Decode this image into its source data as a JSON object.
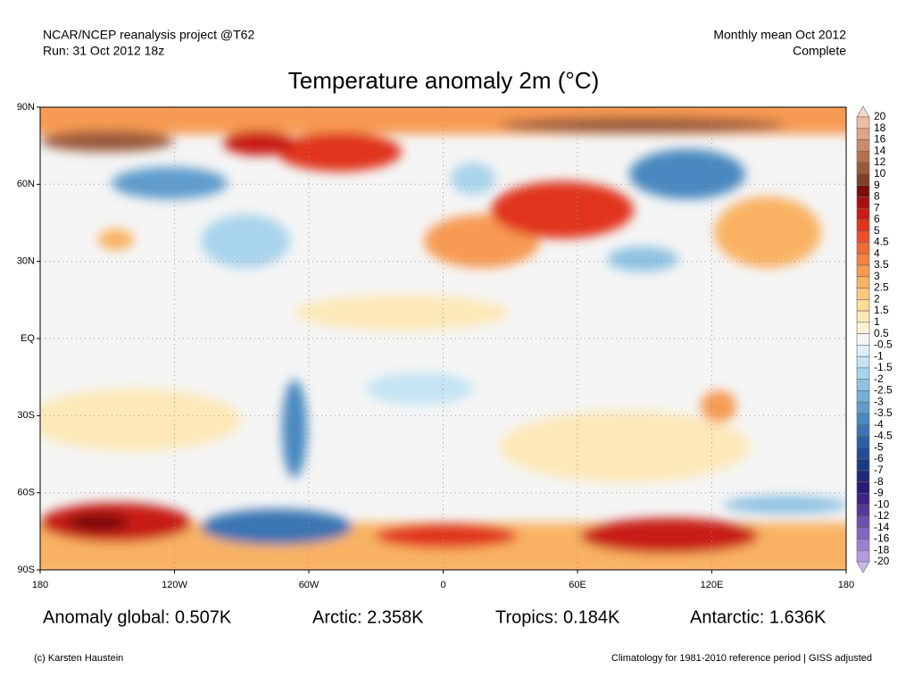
{
  "header": {
    "left": [
      "NCAR/NCEP reanalysis project @T62",
      "Run: 31 Oct 2012 18z"
    ],
    "right": [
      "Monthly mean Oct 2012",
      "Complete"
    ]
  },
  "title": "Temperature anomaly 2m (°C)",
  "lat_labels": [
    "90N",
    "60N",
    "30N",
    "EQ",
    "30S",
    "60S",
    "90S"
  ],
  "lon_labels": [
    "180",
    "120W",
    "60W",
    "0",
    "60E",
    "120E",
    "180"
  ],
  "colorbar": {
    "labels": [
      "20",
      "18",
      "16",
      "14",
      "12",
      "10",
      "9",
      "8",
      "7",
      "6",
      "5",
      "4.5",
      "4",
      "3.5",
      "3",
      "2.5",
      "2",
      "1.5",
      "1",
      "0.5",
      "-0.5",
      "-1",
      "-1.5",
      "-2",
      "-2.5",
      "-3",
      "-3.5",
      "-4",
      "-4.5",
      "-5",
      "-6",
      "-7",
      "-8",
      "-9",
      "-10",
      "-12",
      "-14",
      "-16",
      "-18",
      "-20"
    ],
    "colors": [
      "#f8d8c8",
      "#eebba5",
      "#e0a388",
      "#cc8a6c",
      "#b47152",
      "#9a5a3c",
      "#7e4028",
      "#7a0c0c",
      "#a80f0f",
      "#c81c14",
      "#e0361e",
      "#ec5028",
      "#f26a34",
      "#f58242",
      "#f79a52",
      "#f9b264",
      "#fbc87c",
      "#fcda98",
      "#fde8b8",
      "#fef2d6",
      "#f5f5f5",
      "#dceff9",
      "#c4e4f4",
      "#a8d4ec",
      "#8ec2e2",
      "#76b0d8",
      "#5e9ccc",
      "#4a88c0",
      "#3a74b2",
      "#2c60a4",
      "#224c96",
      "#1c3a88",
      "#20287a",
      "#2c1a78",
      "#3e2488",
      "#54389a",
      "#6a50ae",
      "#8068c0",
      "#9882d0",
      "#b09ce0",
      "#c8b8ee"
    ]
  },
  "stats": [
    "Anomaly global: 0.507K",
    "Arctic: 2.358K",
    "Tropics: 0.184K",
    "Antarctic: 1.636K"
  ],
  "footer": {
    "left": "(c) Karsten Haustein",
    "right": "Climatology for 1981-2010 reference period | GISS adjusted"
  }
}
